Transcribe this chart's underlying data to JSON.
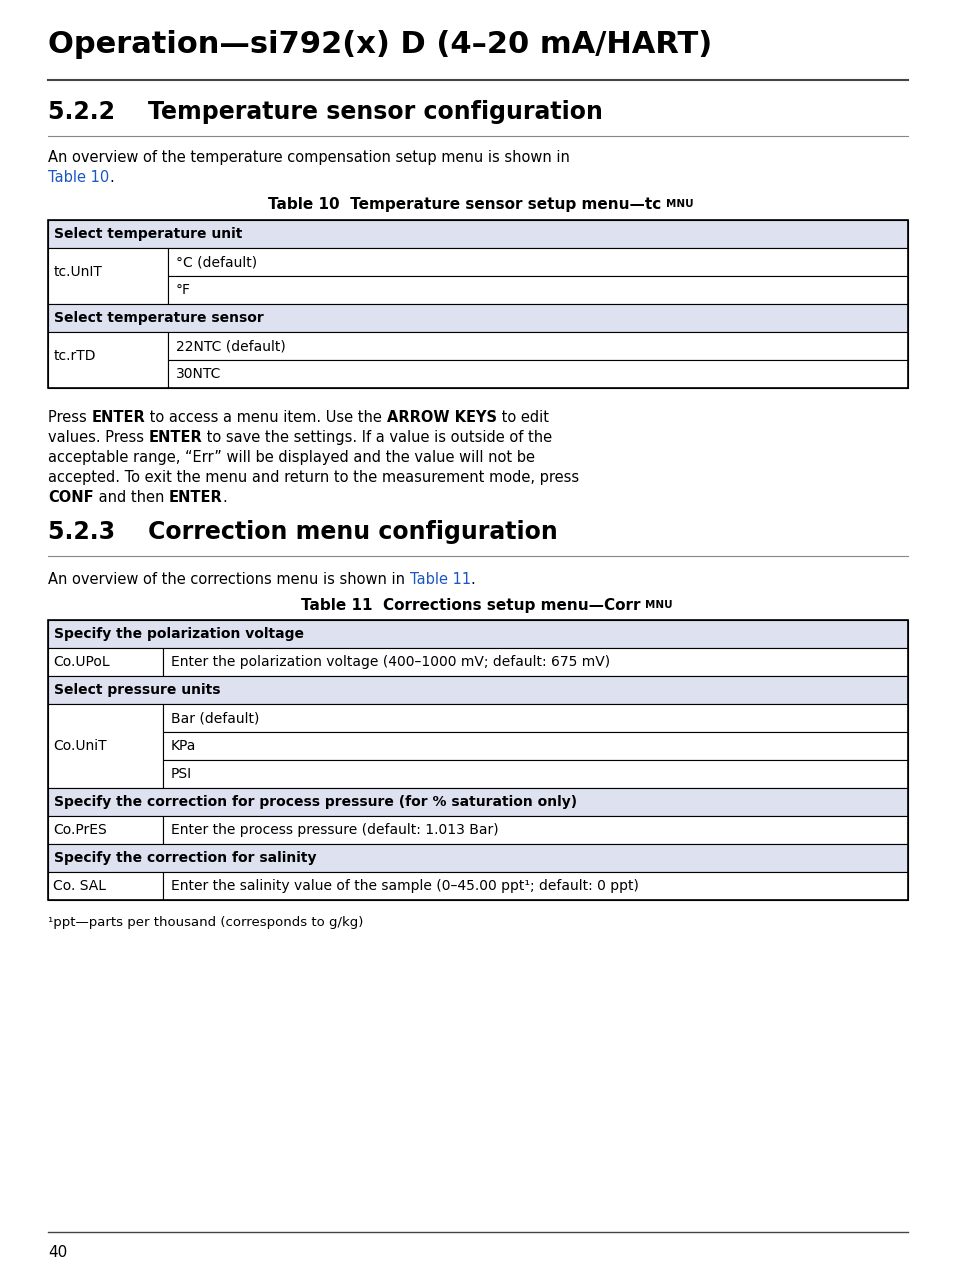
{
  "page_bg": "#ffffff",
  "main_title": "Operation—si792(x) D (4–20 mA/HART)",
  "section1_num": "5.2.2",
  "section1_title": "Temperature sensor configuration",
  "sec1_intro_line1": "An overview of the temperature compensation setup menu is shown in",
  "sec1_intro_line2_plain": "Table 10",
  "sec1_intro_line2_end": ".",
  "table1_caption_bold": "Table 10  Temperature sensor setup menu—tc ",
  "table1_caption_small": "MNU",
  "table1_header1": "Select temperature unit",
  "table1_r1_col1": "tc.UnIT",
  "table1_r1a_col2": "°C (default)",
  "table1_r1b_col2": "°F",
  "table1_header2": "Select temperature sensor",
  "table1_r2_col1": "tc.rTD",
  "table1_r2a_col2": "22NTC (default)",
  "table1_r2b_col2": "30NTC",
  "para_line1_p1": "Press ",
  "para_line1_b1": "ENTER",
  "para_line1_p2": " to access a menu item. Use the ",
  "para_line1_b2": "ARROW KEYS",
  "para_line1_p3": " to edit",
  "para_line2_p1": "values. Press ",
  "para_line2_b1": "ENTER",
  "para_line2_p2": " to save the settings. If a value is outside of the",
  "para_line3": "acceptable range, “Err” will be displayed and the value will not be",
  "para_line4": "accepted. To exit the menu and return to the measurement mode, press",
  "para_line5_b1": "CONF",
  "para_line5_p1": " and then ",
  "para_line5_b2": "ENTER",
  "para_line5_p2": ".",
  "section2_num": "5.2.3",
  "section2_title": "Correction menu configuration",
  "sec2_intro_plain": "An overview of the corrections menu is shown in ",
  "sec2_intro_link": "Table 11",
  "sec2_intro_end": ".",
  "table2_caption_bold": "Table 11  Corrections setup menu—Corr ",
  "table2_caption_small": "MNU",
  "table2_header1": "Specify the polarization voltage",
  "table2_r1_col1": "Co.UPoL",
  "table2_r1_col2": "Enter the polarization voltage (400–1000 mV; default: 675 mV)",
  "table2_header2": "Select pressure units",
  "table2_r2_col1": "Co.UniT",
  "table2_r2a_col2": "Bar (default)",
  "table2_r2b_col2": "KPa",
  "table2_r2c_col2": "PSI",
  "table2_header3": "Specify the correction for process pressure (for % saturation only)",
  "table2_r3_col1": "Co.PrES",
  "table2_r3_col2": "Enter the process pressure (default: 1.013 Bar)",
  "table2_header4": "Specify the correction for salinity",
  "table2_r4_col1": "Co. SAL",
  "table2_r4_col2": "Enter the salinity value of the sample (0–45.00 ppt¹; default: 0 ppt)",
  "footnote": "¹ppt—parts per thousand (corresponds to g/kg)",
  "page_num": "40",
  "header_bg": "#dde1f0",
  "link_color": "#1a56c4",
  "border_color": "#000000",
  "text_color": "#000000",
  "white": "#ffffff"
}
